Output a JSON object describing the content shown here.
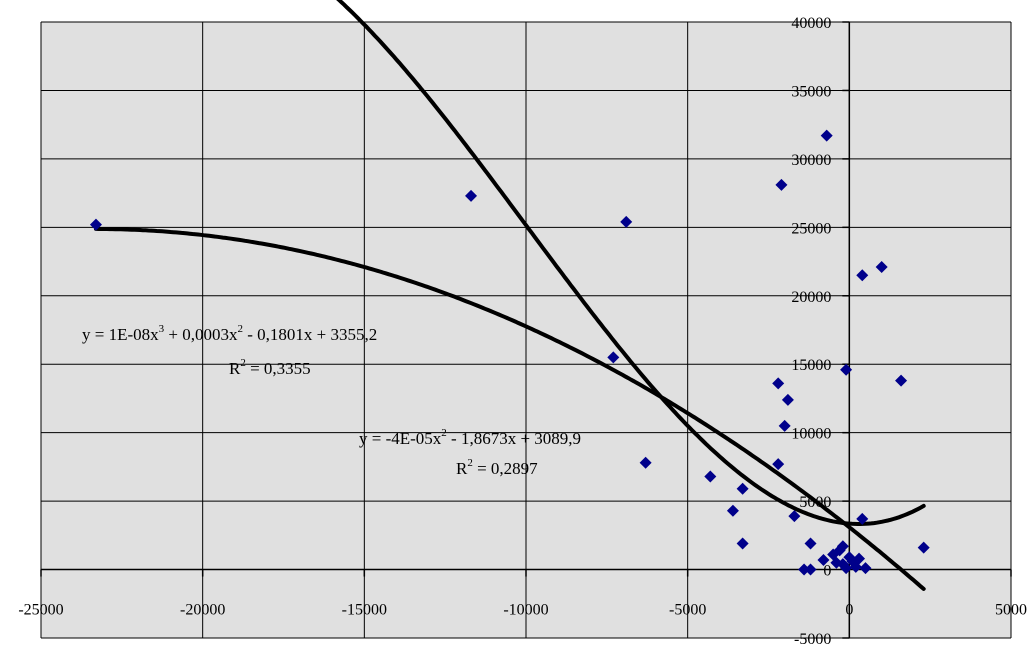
{
  "chart_data": {
    "type": "scatter",
    "title": "",
    "xlabel": "",
    "ylabel": "",
    "xlim": [
      -25000,
      5000
    ],
    "ylim": [
      -5000,
      40000
    ],
    "grid": true,
    "x_ticks": [
      -25000,
      -20000,
      -15000,
      -10000,
      -5000,
      0,
      5000
    ],
    "y_ticks": [
      -5000,
      0,
      5000,
      10000,
      15000,
      20000,
      25000,
      30000,
      35000,
      40000
    ],
    "tick_labels_x": [
      "-25000",
      "-20000",
      "-15000",
      "-10000",
      "-5000",
      "0",
      "5000"
    ],
    "tick_labels_y": [
      "-5000",
      "0",
      "5000",
      "10000",
      "15000",
      "20000",
      "25000",
      "30000",
      "35000",
      "40000"
    ],
    "colors": {
      "plot_bg": "#e0e0e0",
      "points": "#00008b",
      "trend": "#000000",
      "grid": "#000000"
    },
    "points": [
      [
        -23300,
        25200
      ],
      [
        -11700,
        27300
      ],
      [
        -7300,
        15500
      ],
      [
        -6900,
        25400
      ],
      [
        -6300,
        7800
      ],
      [
        -4300,
        6800
      ],
      [
        -3600,
        4300
      ],
      [
        -3300,
        5900
      ],
      [
        -3300,
        1900
      ],
      [
        -2200,
        13600
      ],
      [
        -2200,
        7700
      ],
      [
        -2100,
        28100
      ],
      [
        -2000,
        10500
      ],
      [
        -1900,
        12400
      ],
      [
        -1700,
        3900
      ],
      [
        -1400,
        0
      ],
      [
        -1200,
        0
      ],
      [
        -1200,
        1900
      ],
      [
        -800,
        700
      ],
      [
        -700,
        31700
      ],
      [
        -500,
        1100
      ],
      [
        -400,
        500
      ],
      [
        -300,
        1400
      ],
      [
        -200,
        1700
      ],
      [
        -200,
        400
      ],
      [
        -100,
        14600
      ],
      [
        -100,
        100
      ],
      [
        0,
        900
      ],
      [
        100,
        600
      ],
      [
        200,
        200
      ],
      [
        300,
        800
      ],
      [
        400,
        3700
      ],
      [
        400,
        21500
      ],
      [
        500,
        100
      ],
      [
        1000,
        22100
      ],
      [
        1600,
        13800
      ],
      [
        2300,
        1600
      ]
    ],
    "trendlines": [
      {
        "kind": "polynomial-3",
        "coefficients": [
          1e-08,
          0.0003,
          -0.1801,
          3355.2
        ],
        "x_range": [
          -23300,
          2300
        ],
        "equation_label": "y = 1E-08x³ + 0,0003x² - 0,1801x + 3355,2",
        "equation_prefix": "y = 1E-08x",
        "equation_middle": " + 0,0003x",
        "equation_suffix": " - 0,1801x + 3355,2",
        "r2_prefix": "R",
        "r2_suffix": " = 0,3355"
      },
      {
        "kind": "polynomial-2",
        "coefficients": [
          -4e-05,
          -1.8673,
          3089.9
        ],
        "x_range": [
          -23300,
          2300
        ],
        "equation_label": "y = -4E-05x² - 1,8673x + 3089,9",
        "equation_prefix": "y = -4E-05x",
        "equation_suffix": " - 1,8673x + 3089,9",
        "r2_prefix": "R",
        "r2_suffix": " = 0,2897"
      }
    ]
  }
}
